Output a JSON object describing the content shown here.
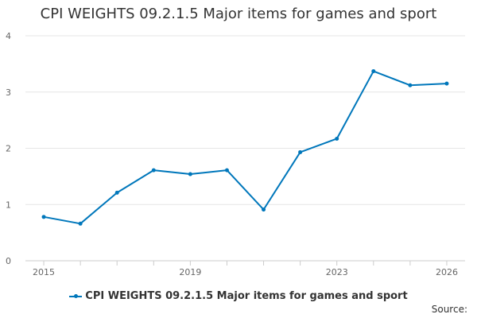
{
  "chart_data": {
    "type": "line",
    "title": "CPI WEIGHTS 09.2.1.5 Major items for games and sport",
    "x": [
      2015,
      2016,
      2017,
      2018,
      2019,
      2020,
      2021,
      2022,
      2023,
      2024,
      2025,
      2026
    ],
    "x_tick_labels": [
      "2015",
      "2019",
      "2023",
      "2026"
    ],
    "y_tick_labels": [
      "0",
      "1",
      "2",
      "3",
      "4"
    ],
    "ylim": [
      0,
      4
    ],
    "grid": true,
    "legend_position": "bottom",
    "series": [
      {
        "name": "CPI WEIGHTS 09.2.1.5 Major items for games and sport",
        "color": "#0077bb",
        "values": [
          0.78,
          0.66,
          1.21,
          1.61,
          1.54,
          1.61,
          0.91,
          1.93,
          2.17,
          3.37,
          3.12,
          3.15
        ]
      }
    ]
  },
  "footer": {
    "source_label": "Source:"
  }
}
